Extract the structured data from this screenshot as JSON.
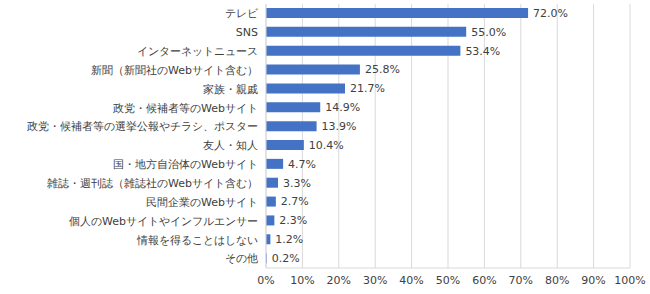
{
  "chart_data": {
    "type": "bar",
    "orientation": "horizontal",
    "categories": [
      "テレビ",
      "SNS",
      "インターネットニュース",
      "新聞（新聞社のWebサイト含む）",
      "家族・親戚",
      "政党・候補者等のWebサイト",
      "政党・候補者等の選挙公報やチラシ、ポスター",
      "友人・知人",
      "国・地方自治体のWebサイト",
      "雑誌・週刊誌（雑誌社のWebサイト含む）",
      "民間企業のWebサイト",
      "個人のWebサイトやインフルエンサー",
      "情報を得ることはしない",
      "その他"
    ],
    "values": [
      72.0,
      55.0,
      53.4,
      25.8,
      21.7,
      14.9,
      13.9,
      10.4,
      4.7,
      3.3,
      2.7,
      2.3,
      1.2,
      0.2
    ],
    "value_labels": [
      "72.0%",
      "55.0%",
      "53.4%",
      "25.8%",
      "21.7%",
      "14.9%",
      "13.9%",
      "10.4%",
      "4.7%",
      "3.3%",
      "2.7%",
      "2.3%",
      "1.2%",
      "0.2%"
    ],
    "data_labels": true,
    "color": "#4472c4",
    "xlim": [
      0,
      100
    ],
    "xticks": [
      {
        "value": 0,
        "label": "0%"
      },
      {
        "value": 10,
        "label": "10%"
      },
      {
        "value": 20,
        "label": "20%"
      },
      {
        "value": 30,
        "label": "30%"
      },
      {
        "value": 40,
        "label": "40%"
      },
      {
        "value": 50,
        "label": "50%"
      },
      {
        "value": 60,
        "label": "60%"
      },
      {
        "value": 70,
        "label": "70%"
      },
      {
        "value": 80,
        "label": "80%"
      },
      {
        "value": 90,
        "label": "90%"
      },
      {
        "value": 100,
        "label": "100%"
      }
    ],
    "grid": true
  }
}
